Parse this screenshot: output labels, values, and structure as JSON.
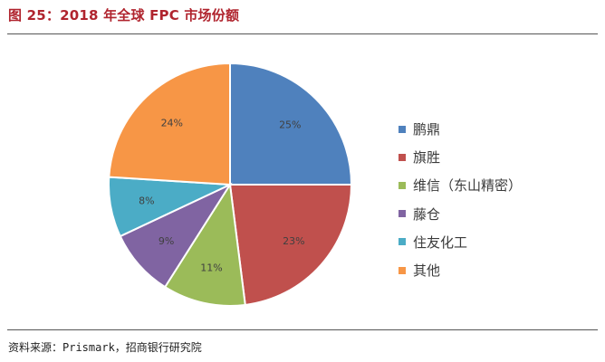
{
  "figure": {
    "title": "图 25：2018 年全球 FPC 市场份额",
    "source": "资料来源：Prismark，招商银行研究院"
  },
  "chart_data": {
    "type": "pie",
    "title": "",
    "unit": "%",
    "legend_position": "right",
    "slices": [
      {
        "label": "鹏鼎",
        "value": 25,
        "value_label": "25%",
        "color": "#4f81bd"
      },
      {
        "label": "旗胜",
        "value": 23,
        "value_label": "23%",
        "color": "#c0504d"
      },
      {
        "label": "维信（东山精密）",
        "value": 11,
        "value_label": "11%",
        "color": "#9bbb59"
      },
      {
        "label": "藤仓",
        "value": 9,
        "value_label": "9%",
        "color": "#8064a2"
      },
      {
        "label": "住友化工",
        "value": 8,
        "value_label": "8%",
        "color": "#4bacc6"
      },
      {
        "label": "其他",
        "value": 24,
        "value_label": "24%",
        "color": "#f79646"
      }
    ]
  }
}
